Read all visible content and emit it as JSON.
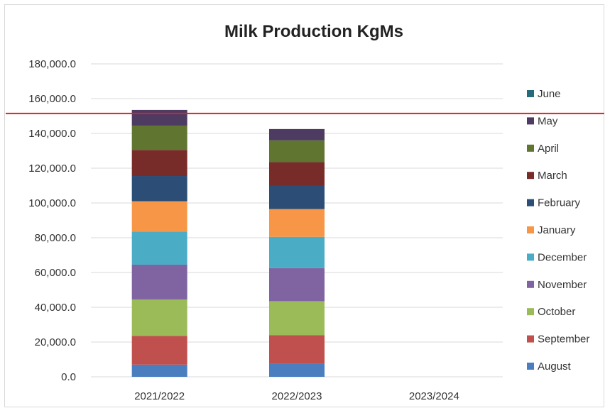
{
  "chart_data": {
    "type": "bar",
    "stacked": true,
    "title": "Milk Production KgMs",
    "xlabel": "",
    "ylabel": "",
    "ylim": [
      0,
      180000
    ],
    "ytick_step": 20000,
    "ytick_labels": [
      "0.0",
      "20,000.0",
      "40,000.0",
      "60,000.0",
      "80,000.0",
      "100,000.0",
      "120,000.0",
      "140,000.0",
      "160,000.0",
      "180,000.0"
    ],
    "grid": true,
    "legend_position": "right",
    "categories": [
      "2021/2022",
      "2022/2023",
      "2023/2024"
    ],
    "reference_line": {
      "value": 151500,
      "color": "#e02020"
    },
    "series": [
      {
        "name": "August",
        "color": "#4a7ebf",
        "values": [
          7000,
          7500,
          0
        ]
      },
      {
        "name": "September",
        "color": "#c0504d",
        "values": [
          16500,
          16500,
          0
        ]
      },
      {
        "name": "October",
        "color": "#9bbb59",
        "values": [
          21000,
          19500,
          0
        ]
      },
      {
        "name": "November",
        "color": "#8064a2",
        "values": [
          20000,
          19000,
          0
        ]
      },
      {
        "name": "December",
        "color": "#4bacc6",
        "values": [
          19000,
          18000,
          0
        ]
      },
      {
        "name": "January",
        "color": "#f79646",
        "values": [
          17500,
          16000,
          0
        ]
      },
      {
        "name": "February",
        "color": "#2c4d75",
        "values": [
          14500,
          13500,
          0
        ]
      },
      {
        "name": "March",
        "color": "#772c2a",
        "values": [
          15000,
          13500,
          0
        ]
      },
      {
        "name": "April",
        "color": "#5f7530",
        "values": [
          14000,
          12500,
          0
        ]
      },
      {
        "name": "May",
        "color": "#4d3b62",
        "values": [
          9000,
          6500,
          0
        ]
      },
      {
        "name": "June",
        "color": "#276a7c",
        "values": [
          0,
          0,
          0
        ]
      }
    ]
  }
}
